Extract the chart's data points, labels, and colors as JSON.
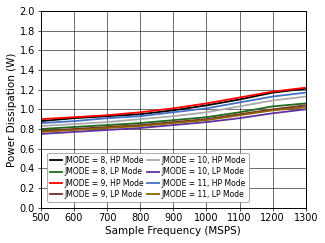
{
  "xlabel": "Sample Frequency (MSPS)",
  "ylabel": "Power Dissipation (W)",
  "xlim": [
    500,
    1300
  ],
  "ylim": [
    0,
    2
  ],
  "xticks": [
    500,
    600,
    700,
    800,
    900,
    1000,
    1100,
    1200,
    1300
  ],
  "yticks": [
    0,
    0.2,
    0.4,
    0.6,
    0.8,
    1.0,
    1.2,
    1.4,
    1.6,
    1.8,
    2.0
  ],
  "fs": [
    500,
    600,
    700,
    800,
    900,
    1000,
    1100,
    1200,
    1300
  ],
  "series": {
    "jmode8_hp": [
      0.88,
      0.91,
      0.93,
      0.95,
      0.99,
      1.04,
      1.1,
      1.17,
      1.21
    ],
    "jmode9_hp": [
      0.9,
      0.92,
      0.94,
      0.97,
      1.01,
      1.06,
      1.12,
      1.18,
      1.22
    ],
    "jmode10_hp": [
      0.83,
      0.85,
      0.87,
      0.9,
      0.93,
      0.97,
      1.03,
      1.09,
      1.13
    ],
    "jmode11_hp": [
      0.86,
      0.88,
      0.91,
      0.93,
      0.97,
      1.01,
      1.07,
      1.13,
      1.17
    ],
    "jmode8_lp": [
      0.8,
      0.82,
      0.84,
      0.86,
      0.89,
      0.92,
      0.97,
      1.03,
      1.06
    ],
    "jmode9_lp": [
      0.78,
      0.8,
      0.82,
      0.84,
      0.87,
      0.9,
      0.95,
      1.0,
      1.04
    ],
    "jmode10_lp": [
      0.75,
      0.77,
      0.79,
      0.81,
      0.84,
      0.87,
      0.91,
      0.96,
      1.0
    ],
    "jmode11_lp": [
      0.77,
      0.79,
      0.81,
      0.83,
      0.86,
      0.89,
      0.94,
      0.99,
      1.02
    ]
  },
  "colors": {
    "jmode8_hp": "#000000",
    "jmode9_hp": "#ff0000",
    "jmode10_hp": "#aaaaaa",
    "jmode11_hp": "#4472c4",
    "jmode8_lp": "#1a6b1a",
    "jmode9_lp": "#7b2a2a",
    "jmode10_lp": "#6030a0",
    "jmode11_lp": "#8b6400"
  },
  "linewidths": {
    "jmode8_hp": 1.3,
    "jmode9_hp": 1.3,
    "jmode10_hp": 1.3,
    "jmode11_hp": 1.3,
    "jmode8_lp": 1.3,
    "jmode9_lp": 1.3,
    "jmode10_lp": 1.3,
    "jmode11_lp": 1.3
  },
  "legend_order": [
    "jmode8_hp",
    "jmode8_lp",
    "jmode9_hp",
    "jmode9_lp",
    "jmode10_hp",
    "jmode10_lp",
    "jmode11_hp",
    "jmode11_lp"
  ],
  "legend_labels": {
    "jmode8_hp": "JMODE = 8, HP Mode",
    "jmode9_hp": "JMODE = 9, HP Mode",
    "jmode10_hp": "JMODE = 10, HP Mode",
    "jmode11_hp": "JMODE = 11, HP Mode",
    "jmode8_lp": "JMODE = 8, LP Mode",
    "jmode9_lp": "JMODE = 9, LP Mode",
    "jmode10_lp": "JMODE = 10, LP Mode",
    "jmode11_lp": "JMODE = 11, LP Mode"
  },
  "legend_col1": [
    "jmode8_hp",
    "jmode9_hp",
    "jmode10_hp",
    "jmode11_hp"
  ],
  "legend_col2": [
    "jmode8_lp",
    "jmode9_lp",
    "jmode10_lp",
    "jmode11_lp"
  ],
  "tick_fontsize": 7,
  "label_fontsize": 7.5,
  "legend_fontsize": 5.5
}
